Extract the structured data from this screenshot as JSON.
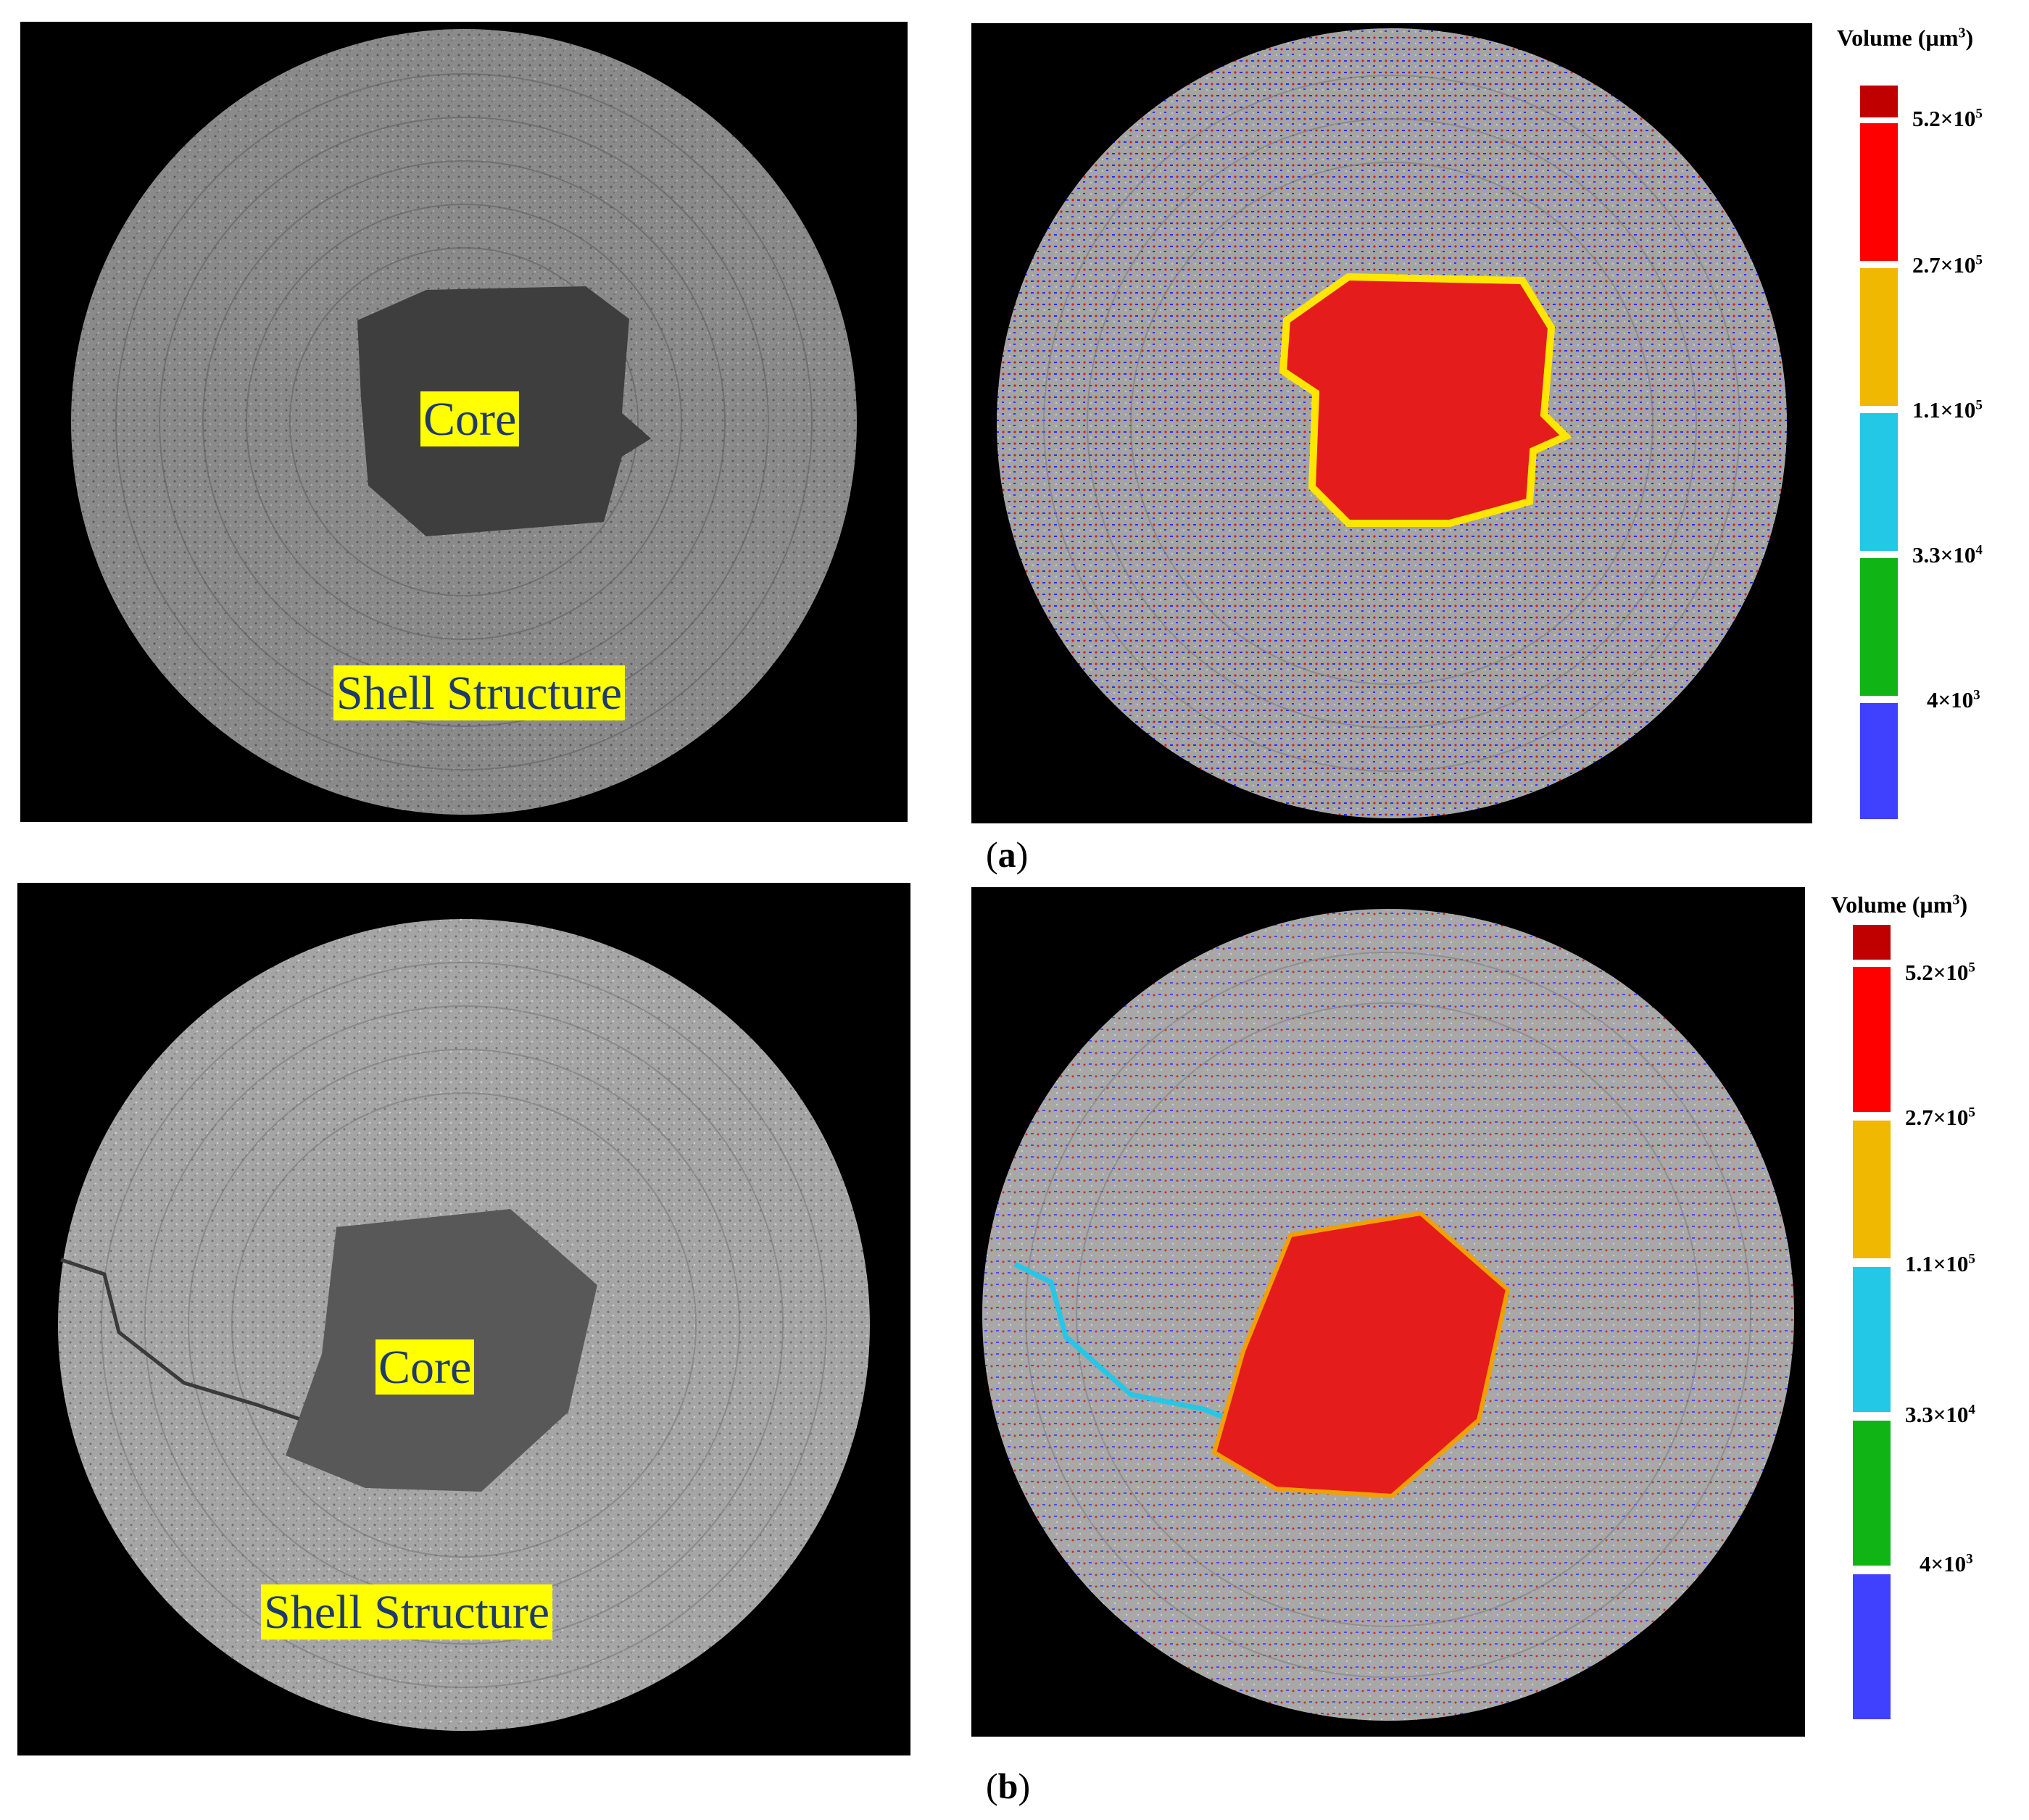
{
  "panels": {
    "a_left": {
      "core_label": "Core",
      "shell_label": "Shell Structure"
    },
    "b_left": {
      "core_label": "Core",
      "shell_label": "Shell Structure"
    }
  },
  "captions": {
    "a": "a",
    "b": "b"
  },
  "legend": {
    "title": "Volume (µm",
    "title_sup": "3",
    "title_close": ")",
    "colors": [
      "#c00000",
      "#ff0000",
      "#f0b800",
      "#22c8e6",
      "#10b414",
      "#4040ff"
    ],
    "ticks": [
      {
        "mant": "5.2×10",
        "exp": "5"
      },
      {
        "mant": "2.7×10",
        "exp": "5"
      },
      {
        "mant": "1.1×10",
        "exp": "5"
      },
      {
        "mant": "3.3×10",
        "exp": "4"
      },
      {
        "mant": "4×10",
        "exp": "3"
      }
    ]
  },
  "overlay_colors": {
    "pore_small": "#2020ff",
    "pore_large": "#d02020",
    "core_fill": "#e51c1c",
    "core_edge_a": "#ffe600",
    "core_edge_b": "#f0a000",
    "crack_b": "#26c6e6"
  }
}
